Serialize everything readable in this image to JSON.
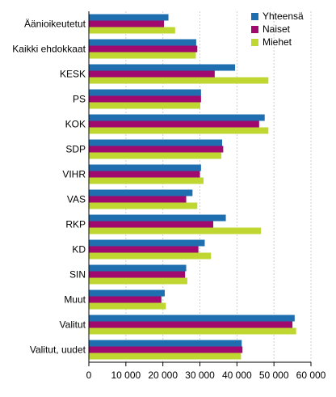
{
  "chart_data": {
    "type": "bar",
    "orientation": "horizontal",
    "categories": [
      "Äänioikeutetut",
      "Kaikki ehdokkaat",
      "KESK",
      "PS",
      "KOK",
      "SDP",
      "VIHR",
      "VAS",
      "RKP",
      "KD",
      "SIN",
      "Muut",
      "Valitut",
      "Valitut, uudet"
    ],
    "series": [
      {
        "name": "Yhteensä",
        "color": "#1f6fb0",
        "values": [
          21500,
          29000,
          39500,
          30300,
          47500,
          36000,
          30300,
          28000,
          37000,
          31300,
          26300,
          20500,
          55600,
          41300
        ]
      },
      {
        "name": "Naiset",
        "color": "#a0096e",
        "values": [
          20300,
          29300,
          34000,
          30300,
          46000,
          36300,
          30000,
          26300,
          33600,
          29600,
          26000,
          19600,
          55000,
          41500
        ]
      },
      {
        "name": "Miehet",
        "color": "#bfd730",
        "values": [
          23300,
          28900,
          48500,
          30100,
          48500,
          35800,
          31000,
          29300,
          46500,
          33000,
          26600,
          20800,
          56000,
          41100
        ]
      }
    ],
    "xlim": [
      0,
      60000
    ],
    "xticks": [
      0,
      10000,
      20000,
      30000,
      40000,
      50000,
      60000
    ],
    "xtick_labels": [
      "0",
      "10 000",
      "20 000",
      "30 000",
      "40 000",
      "50 000",
      "60 000"
    ],
    "grid": true,
    "legend": "top-right",
    "title": "",
    "xlabel": "",
    "ylabel": ""
  }
}
